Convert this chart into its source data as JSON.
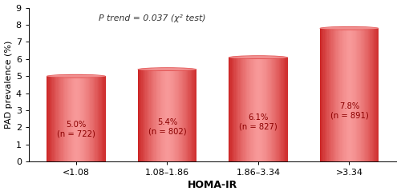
{
  "categories": [
    "<1.08",
    "1.08–1.86",
    "1.86–3.34",
    ">3.34"
  ],
  "values": [
    5.0,
    5.4,
    6.1,
    7.8
  ],
  "labels": [
    "5.0%\n(n = 722)",
    "5.4%\n(n = 802)",
    "6.1%\n(n = 827)",
    "7.8%\n(n = 891)"
  ],
  "bar_color_main": "#f05555",
  "bar_color_light": "#f88888",
  "bar_color_dark": "#d03030",
  "bar_top_color": "#f87070",
  "title_annotation": "P trend = 0.037 (χ² test)",
  "xlabel": "HOMA-IR",
  "ylabel": "PAD prevalence (%)",
  "ylim": [
    0,
    9
  ],
  "yticks": [
    0,
    1,
    2,
    3,
    4,
    5,
    6,
    7,
    8,
    9
  ],
  "label_color": "#8B0000",
  "figsize": [
    5.0,
    2.44
  ],
  "dpi": 100,
  "bar_width": 0.65
}
